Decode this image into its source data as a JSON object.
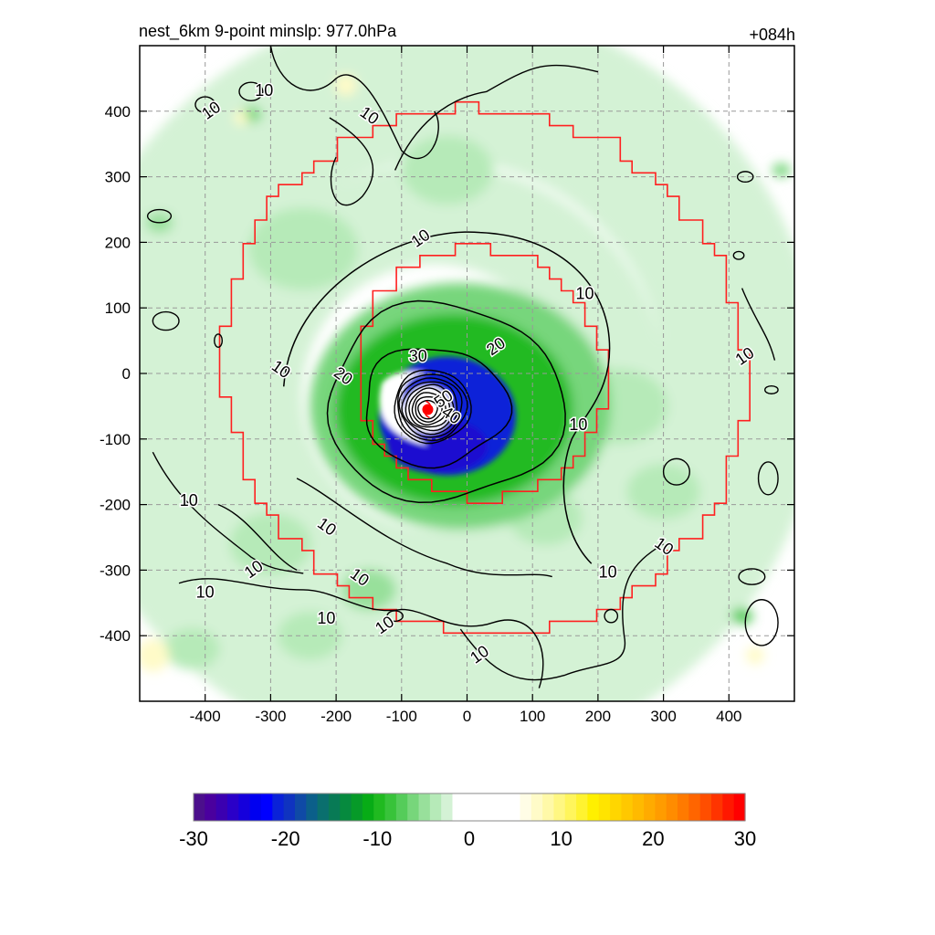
{
  "chart_data": {
    "type": "heatmap",
    "title_left": "nest_6km  9-point minslp: 977.0hPa",
    "title_right": "+084h",
    "xlabel": "",
    "ylabel": "",
    "xlim": [
      -500,
      500
    ],
    "ylim": [
      -500,
      500
    ],
    "x_ticks": [
      -400,
      -300,
      -200,
      -100,
      0,
      100,
      200,
      300,
      400
    ],
    "y_ticks": [
      400,
      300,
      200,
      100,
      0,
      -100,
      -200,
      -300,
      -400
    ],
    "grid": true,
    "storm_center": {
      "x": -60,
      "y": -55
    },
    "center_marker_color": "#ff0000",
    "boundary_color": "#ff2020",
    "contour_color": "#000000",
    "contour_levels": [
      10,
      20,
      30,
      40,
      50,
      60
    ],
    "contour_labels": [
      {
        "text": "10",
        "x": -390,
        "y": 400
      },
      {
        "text": "10",
        "x": -310,
        "y": 430
      },
      {
        "text": "10",
        "x": -150,
        "y": 392
      },
      {
        "text": "10",
        "x": -70,
        "y": 205
      },
      {
        "text": "10",
        "x": 180,
        "y": 120
      },
      {
        "text": "10",
        "x": -285,
        "y": 5
      },
      {
        "text": "10",
        "x": 425,
        "y": 25
      },
      {
        "text": "10",
        "x": 170,
        "y": -80
      },
      {
        "text": "20",
        "x": -190,
        "y": -5
      },
      {
        "text": "20",
        "x": 45,
        "y": 40
      },
      {
        "text": "30",
        "x": -75,
        "y": 25
      },
      {
        "text": "40",
        "x": -25,
        "y": -65
      },
      {
        "text": "50",
        "x": -35,
        "y": -40
      },
      {
        "text": "10",
        "x": -425,
        "y": -195
      },
      {
        "text": "10",
        "x": -215,
        "y": -235
      },
      {
        "text": "10",
        "x": -325,
        "y": -300
      },
      {
        "text": "10",
        "x": -400,
        "y": -335
      },
      {
        "text": "10",
        "x": -165,
        "y": -312
      },
      {
        "text": "10",
        "x": -125,
        "y": -385
      },
      {
        "text": "10",
        "x": 215,
        "y": -305
      },
      {
        "text": "10",
        "x": 300,
        "y": -265
      },
      {
        "text": "10",
        "x": 20,
        "y": -430
      },
      {
        "text": "10",
        "x": -215,
        "y": -375
      }
    ],
    "colorbar": {
      "ticks": [
        -30,
        -20,
        -10,
        0,
        10,
        20,
        30
      ],
      "range": [
        -30,
        30
      ],
      "colors": [
        "#4b0f8c",
        "#4a009e",
        "#3b00b0",
        "#2a00c8",
        "#1500dc",
        "#0000f0",
        "#0000ff",
        "#0a22d8",
        "#0f33c0",
        "#0f4aa6",
        "#0b5f8a",
        "#0a6f6e",
        "#087a55",
        "#068a3e",
        "#069a28",
        "#07ac16",
        "#20ba20",
        "#38c33a",
        "#55cc5a",
        "#77d67b",
        "#98e09b",
        "#b6eab8",
        "#d4f2d5",
        "#ffffff",
        "#ffffff",
        "#ffffff",
        "#ffffff",
        "#ffffff",
        "#ffffff",
        "#fffde6",
        "#fffbc8",
        "#fff9a8",
        "#fff782",
        "#fff55c",
        "#fff330",
        "#fff000",
        "#ffe400",
        "#ffd600",
        "#ffc800",
        "#ffba00",
        "#ffab00",
        "#ff9c00",
        "#ff8c00",
        "#ff7a00",
        "#ff6500",
        "#ff4e00",
        "#ff3400",
        "#ff1800",
        "#ff0000"
      ]
    },
    "green_shading_summary": "Mostly negative values (-2 to -8) across a broad ring; strong negative core (-10 to -24) surrounding the storm center, strongest southeast of center"
  }
}
